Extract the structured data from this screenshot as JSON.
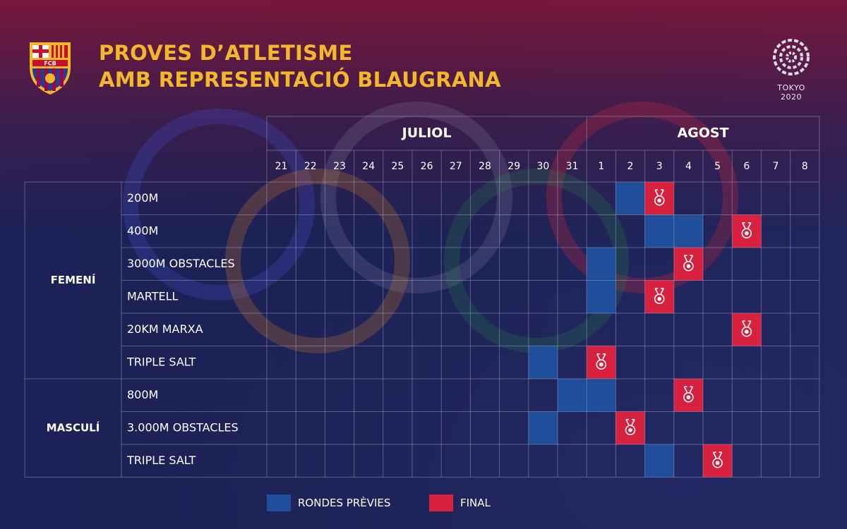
{
  "title": {
    "line1": "PROVES D’ATLETISME",
    "line2": "AMB REPRESENTACIÓ BLAUGRANA"
  },
  "logo": {
    "icon": "fc-barcelona-crest-icon",
    "text": "FCB"
  },
  "tokyo": {
    "icon": "tokyo-2020-emblem-icon",
    "label": "TOKYO 2020"
  },
  "colors": {
    "preliminary": "#1f4f9a",
    "final": "#d8203f",
    "title": "#f3b82a",
    "grid": "rgba(200,205,235,0.35)"
  },
  "months": [
    {
      "label": "JULIOL",
      "span": 11
    },
    {
      "label": "AGOST",
      "span": 8
    }
  ],
  "days": [
    "21",
    "22",
    "23",
    "24",
    "25",
    "26",
    "27",
    "28",
    "29",
    "30",
    "31",
    "1",
    "2",
    "3",
    "4",
    "5",
    "6",
    "7",
    "8"
  ],
  "groups": [
    {
      "label": "FEMENÍ",
      "events": [
        {
          "name": "200M",
          "preliminary": [
            "2"
          ],
          "final": [
            "3"
          ]
        },
        {
          "name": "400M",
          "preliminary": [
            "3",
            "4"
          ],
          "final": [
            "6"
          ]
        },
        {
          "name": "3000M OBSTACLES",
          "preliminary": [
            "1"
          ],
          "final": [
            "4"
          ]
        },
        {
          "name": "MARTELL",
          "preliminary": [
            "1"
          ],
          "final": [
            "3"
          ]
        },
        {
          "name": "20KM MARXA",
          "preliminary": [],
          "final": [
            "6"
          ]
        },
        {
          "name": "TRIPLE SALT",
          "preliminary": [
            "30"
          ],
          "final": [
            "1"
          ]
        }
      ]
    },
    {
      "label": "MASCULÍ",
      "events": [
        {
          "name": "800M",
          "preliminary": [
            "31",
            "1"
          ],
          "final": [
            "4"
          ]
        },
        {
          "name": "3.000M OBSTACLES",
          "preliminary": [
            "30"
          ],
          "final": [
            "2"
          ]
        },
        {
          "name": "TRIPLE SALT",
          "preliminary": [
            "3"
          ],
          "final": [
            "5"
          ]
        }
      ]
    }
  ],
  "legend": {
    "preliminary_label": "RONDES PRÈVIES",
    "final_label": "FINAL"
  }
}
